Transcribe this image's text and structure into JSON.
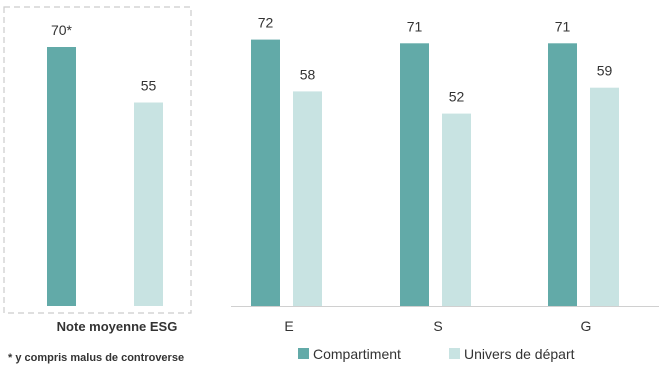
{
  "chart_data": {
    "type": "bar",
    "categories": [
      "Note moyenne ESG",
      "E",
      "S",
      "G"
    ],
    "series": [
      {
        "name": "Compartiment",
        "values": [
          70,
          72,
          71,
          71
        ],
        "color": "#62aaa8"
      },
      {
        "name": "Univers de départ",
        "values": [
          55,
          58,
          52,
          59
        ],
        "color": "#c8e3e2"
      }
    ],
    "value_labels": [
      [
        "70*",
        "72",
        "71",
        "71"
      ],
      [
        "55",
        "58",
        "52",
        "59"
      ]
    ],
    "title": "",
    "xlabel": "",
    "ylabel": "",
    "ylim": [
      0,
      80
    ],
    "grid": false,
    "legend": "bottom",
    "footnote": "* y compris malus de controverse"
  }
}
